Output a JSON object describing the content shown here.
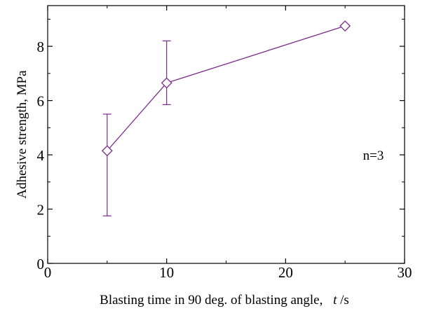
{
  "chart_data": {
    "type": "line",
    "xlabel": "Blasting time in 90 deg. of blasting angle,",
    "xlabel_var": "t",
    "xlabel_unit": "/s",
    "ylabel": "Adhesive strength, MPa",
    "xlim": [
      0,
      30
    ],
    "ylim": [
      0,
      9.5
    ],
    "x_ticks": [
      0,
      10,
      20,
      30
    ],
    "y_ticks": [
      0,
      2,
      4,
      6,
      8
    ],
    "x_tick_labels": [
      "0",
      "10",
      "20",
      "30"
    ],
    "y_tick_labels": [
      "0",
      "2",
      "4",
      "6",
      "8"
    ],
    "grid": false,
    "series": [
      {
        "marker": "open-diamond",
        "color": "#7b2b8b",
        "x": [
          5,
          10,
          25
        ],
        "y": [
          4.15,
          6.65,
          8.75
        ],
        "err_low": [
          1.75,
          5.85,
          null
        ],
        "err_high": [
          5.5,
          8.2,
          null
        ]
      }
    ],
    "annotations": [
      {
        "text": "n=3",
        "x": 26.5,
        "y": 4.0
      }
    ]
  }
}
